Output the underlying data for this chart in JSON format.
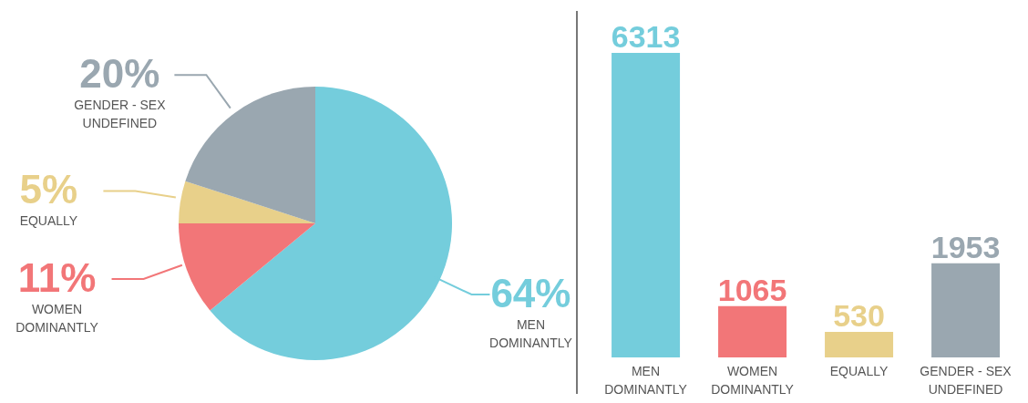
{
  "chart_data": [
    {
      "type": "pie",
      "categories": [
        "MEN\nDOMINANTLY",
        "WOMEN\nDOMINANTLY",
        "EQUALLY",
        "GENDER - SEX\nUNDEFINED"
      ],
      "values": [
        64,
        11,
        5,
        20
      ],
      "colors": [
        "#74cddc",
        "#f27678",
        "#e8d08a",
        "#9aa7b0"
      ],
      "value_labels": [
        "64%",
        "11%",
        "5%",
        "20%"
      ]
    },
    {
      "type": "bar",
      "categories": [
        "MEN\nDOMINANTLY",
        "WOMEN\nDOMINANTLY",
        "EQUALLY",
        "GENDER - SEX\nUNDEFINED"
      ],
      "values": [
        6313,
        1065,
        530,
        1953
      ],
      "colors": [
        "#74cddc",
        "#f27678",
        "#e8d08a",
        "#9aa7b0"
      ],
      "data_labels": true
    }
  ]
}
